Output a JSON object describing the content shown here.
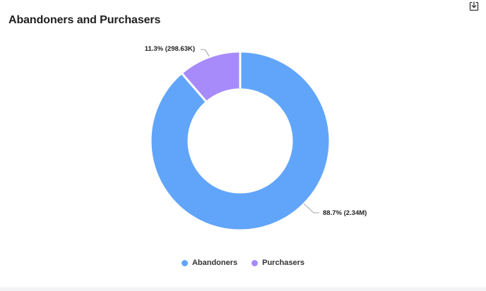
{
  "title": "Abandoners and Purchasers",
  "toolbar": {
    "download_icon": "download-icon"
  },
  "colors": {
    "Abandoners": "#61a5fa",
    "Purchasers": "#a78bfa"
  },
  "chart_data": {
    "type": "pie",
    "variant": "donut",
    "title": "Abandoners and Purchasers",
    "categories": [
      "Abandoners",
      "Purchasers"
    ],
    "values": [
      2340000,
      298630
    ],
    "percentages": [
      88.7,
      11.3
    ],
    "labels": [
      "88.7% (2.34M)",
      "11.3% (298.63K)"
    ],
    "legend": [
      "Abandoners",
      "Purchasers"
    ],
    "legend_position": "bottom"
  }
}
